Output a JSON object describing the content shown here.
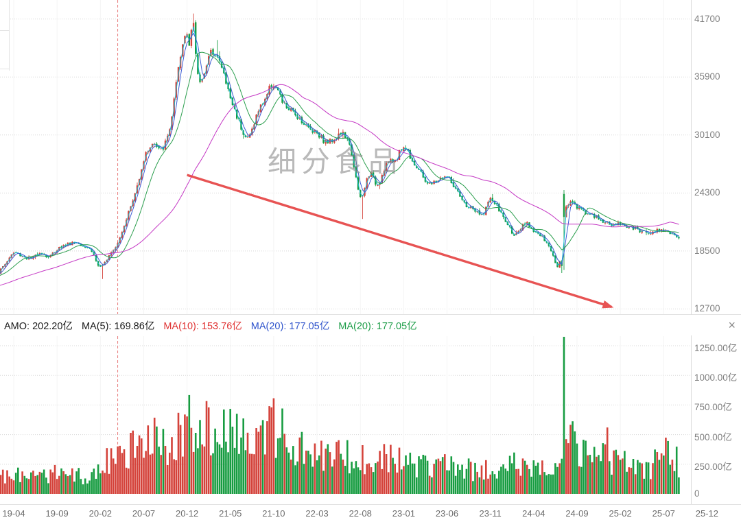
{
  "watermark": {
    "text": "细分食品"
  },
  "icons": {
    "close": "×"
  },
  "indicator_row": {
    "amo_label": "AMO: 202.20亿",
    "ma5_label": "MA(5): 169.86亿",
    "ma10_label": "MA(10): 153.76亿",
    "ma20_label": "MA(20): 177.05亿",
    "ma20b_label": "MA(20): 177.05亿",
    "colors": {
      "amo": "#1a1a1a",
      "ma5": "#1a1a1a",
      "ma10": "#e03434",
      "ma20": "#2f54cc",
      "ma20b": "#1f9e4a"
    }
  },
  "axes": {
    "price_ticks": [
      "41700",
      "35900",
      "30100",
      "24300",
      "18500",
      "12700"
    ],
    "price_tick_values": [
      41700,
      35900,
      30100,
      24300,
      18500,
      12700
    ],
    "volume_ticks": [
      "1250.00亿",
      "1000.00亿",
      "750.00亿",
      "500.00亿",
      "250.00亿",
      "0"
    ],
    "volume_tick_values": [
      1250,
      1000,
      750,
      500,
      250,
      0
    ],
    "x_labels": [
      "19-04",
      "19-09",
      "20-02",
      "20-07",
      "20-12",
      "21-05",
      "21-10",
      "22-03",
      "22-08",
      "23-01",
      "23-06",
      "23-11",
      "24-04",
      "24-09",
      "25-02",
      "25-07",
      "25-12"
    ]
  },
  "chart_data": {
    "type": "candlestick_with_volume",
    "price_axis_range": [
      12700,
      41700
    ],
    "volume_axis_range_yi": [
      0,
      1250
    ],
    "candle_colors": {
      "up": "#d4423a",
      "down": "#179c41"
    },
    "ma_lines": [
      {
        "name": "MA10",
        "period_days": 10,
        "color": "#17b6cf"
      },
      {
        "name": "MA20",
        "period_days": 20,
        "color": "#3b5bd4"
      },
      {
        "name": "MA60",
        "period_days": 60,
        "color": "#2a9e4d"
      },
      {
        "name": "MA250",
        "period_days": 250,
        "color": "#c437c4"
      }
    ],
    "monthly_series": [
      {
        "month": "19-02",
        "close": 16200,
        "amo_yi": 120
      },
      {
        "month": "19-03",
        "close": 17200,
        "amo_yi": 150
      },
      {
        "month": "19-04",
        "close": 18300,
        "amo_yi": 210
      },
      {
        "month": "19-05",
        "close": 18000,
        "amo_yi": 170
      },
      {
        "month": "19-06",
        "close": 17700,
        "amo_yi": 140
      },
      {
        "month": "19-07",
        "close": 18400,
        "amo_yi": 170
      },
      {
        "month": "19-08",
        "close": 17900,
        "amo_yi": 150
      },
      {
        "month": "19-09",
        "close": 18700,
        "amo_yi": 180
      },
      {
        "month": "19-10",
        "close": 19100,
        "amo_yi": 170
      },
      {
        "month": "19-11",
        "close": 19400,
        "amo_yi": 160
      },
      {
        "month": "19-12",
        "close": 19100,
        "amo_yi": 150
      },
      {
        "month": "20-01",
        "close": 18500,
        "amo_yi": 170
      },
      {
        "month": "20-02",
        "close": 16800,
        "amo_yi": 260
      },
      {
        "month": "20-03",
        "close": 18200,
        "amo_yi": 280
      },
      {
        "month": "20-04",
        "close": 19400,
        "amo_yi": 300
      },
      {
        "month": "20-05",
        "close": 21800,
        "amo_yi": 360
      },
      {
        "month": "20-06",
        "close": 24200,
        "amo_yi": 430
      },
      {
        "month": "20-07",
        "close": 27600,
        "amo_yi": 520
      },
      {
        "month": "20-08",
        "close": 29200,
        "amo_yi": 490
      },
      {
        "month": "20-09",
        "close": 28600,
        "amo_yi": 430
      },
      {
        "month": "20-10",
        "close": 30800,
        "amo_yi": 460
      },
      {
        "month": "20-11",
        "close": 36500,
        "amo_yi": 560
      },
      {
        "month": "20-12",
        "close": 40300,
        "amo_yi": 650
      },
      {
        "month": "21-01",
        "close": 35000,
        "amo_yi": 700
      },
      {
        "month": "21-02",
        "close": 36500,
        "amo_yi": 620
      },
      {
        "month": "21-03",
        "close": 38500,
        "amo_yi": 560
      },
      {
        "month": "21-04",
        "close": 36800,
        "amo_yi": 500
      },
      {
        "month": "21-05",
        "close": 33800,
        "amo_yi": 520
      },
      {
        "month": "21-06",
        "close": 31500,
        "amo_yi": 480
      },
      {
        "month": "21-07",
        "close": 29800,
        "amo_yi": 450
      },
      {
        "month": "21-08",
        "close": 32000,
        "amo_yi": 440
      },
      {
        "month": "21-09",
        "close": 33800,
        "amo_yi": 470
      },
      {
        "month": "21-10",
        "close": 35200,
        "amo_yi": 620
      },
      {
        "month": "21-11",
        "close": 33400,
        "amo_yi": 500
      },
      {
        "month": "21-12",
        "close": 32500,
        "amo_yi": 430
      },
      {
        "month": "22-01",
        "close": 31800,
        "amo_yi": 390
      },
      {
        "month": "22-02",
        "close": 30800,
        "amo_yi": 360
      },
      {
        "month": "22-03",
        "close": 30400,
        "amo_yi": 340
      },
      {
        "month": "22-04",
        "close": 29400,
        "amo_yi": 310
      },
      {
        "month": "22-05",
        "close": 29800,
        "amo_yi": 330
      },
      {
        "month": "22-06",
        "close": 30200,
        "amo_yi": 350
      },
      {
        "month": "22-07",
        "close": 28200,
        "amo_yi": 300
      },
      {
        "month": "22-08",
        "close": 23800,
        "amo_yi": 330
      },
      {
        "month": "22-09",
        "close": 26200,
        "amo_yi": 310
      },
      {
        "month": "22-10",
        "close": 25200,
        "amo_yi": 280
      },
      {
        "month": "22-11",
        "close": 27200,
        "amo_yi": 300
      },
      {
        "month": "22-12",
        "close": 27600,
        "amo_yi": 280
      },
      {
        "month": "23-01",
        "close": 28900,
        "amo_yi": 310
      },
      {
        "month": "23-02",
        "close": 27600,
        "amo_yi": 270
      },
      {
        "month": "23-03",
        "close": 26200,
        "amo_yi": 250
      },
      {
        "month": "23-04",
        "close": 25200,
        "amo_yi": 240
      },
      {
        "month": "23-05",
        "close": 25600,
        "amo_yi": 230
      },
      {
        "month": "23-06",
        "close": 25900,
        "amo_yi": 250
      },
      {
        "month": "23-07",
        "close": 24600,
        "amo_yi": 230
      },
      {
        "month": "23-08",
        "close": 23200,
        "amo_yi": 220
      },
      {
        "month": "23-09",
        "close": 22700,
        "amo_yi": 210
      },
      {
        "month": "23-10",
        "close": 22100,
        "amo_yi": 200
      },
      {
        "month": "23-11",
        "close": 23600,
        "amo_yi": 230
      },
      {
        "month": "23-12",
        "close": 22600,
        "amo_yi": 200
      },
      {
        "month": "24-01",
        "close": 21100,
        "amo_yi": 230
      },
      {
        "month": "24-02",
        "close": 20100,
        "amo_yi": 260
      },
      {
        "month": "24-03",
        "close": 21200,
        "amo_yi": 230
      },
      {
        "month": "24-04",
        "close": 20600,
        "amo_yi": 210
      },
      {
        "month": "24-05",
        "close": 19800,
        "amo_yi": 200
      },
      {
        "month": "24-06",
        "close": 18600,
        "amo_yi": 190
      },
      {
        "month": "24-07",
        "close": 17200,
        "amo_yi": 260
      },
      {
        "month": "24-08",
        "close": 23200,
        "amo_yi": 520
      },
      {
        "month": "24-09",
        "close": 22900,
        "amo_yi": 420
      },
      {
        "month": "24-10",
        "close": 22400,
        "amo_yi": 350
      },
      {
        "month": "24-11",
        "close": 21900,
        "amo_yi": 300
      },
      {
        "month": "24-12",
        "close": 21500,
        "amo_yi": 300
      },
      {
        "month": "25-01",
        "close": 21100,
        "amo_yi": 280
      },
      {
        "month": "25-02",
        "close": 21200,
        "amo_yi": 260
      },
      {
        "month": "25-03",
        "close": 20900,
        "amo_yi": 250
      },
      {
        "month": "25-04",
        "close": 20600,
        "amo_yi": 240
      },
      {
        "month": "25-05",
        "close": 20400,
        "amo_yi": 230
      },
      {
        "month": "25-06",
        "close": 20500,
        "amo_yi": 260
      },
      {
        "month": "25-07",
        "close": 20700,
        "amo_yi": 380
      },
      {
        "month": "25-08",
        "close": 20100,
        "amo_yi": 300
      },
      {
        "month": "25-09",
        "close": 19500,
        "amo_yi": 260
      }
    ],
    "events": {
      "candle_overrides": [
        {
          "month": "20-02",
          "week": 1,
          "low": 15700
        },
        {
          "month": "20-12",
          "week": 2,
          "close": 40600
        },
        {
          "month": "20-12",
          "week": 3,
          "close": 41300,
          "high": 42250
        },
        {
          "month": "21-01",
          "week": 0,
          "close": 38200
        },
        {
          "month": "21-01",
          "week": 1,
          "close": 36200
        },
        {
          "month": "21-03",
          "week": 2,
          "high": 39600
        },
        {
          "month": "21-09",
          "week": 3,
          "amo": 730,
          "amo_dir": "up"
        },
        {
          "month": "22-08",
          "week": 1,
          "low": 21700
        },
        {
          "month": "24-07",
          "week": 0,
          "close": 17500
        },
        {
          "month": "24-07",
          "week": 1,
          "close": 17000,
          "low": 16300
        },
        {
          "month": "24-07",
          "week": 2,
          "open": 24200,
          "close": 21900,
          "high": 24600,
          "low": 16600,
          "amo": 1335,
          "amo_dir": "down"
        },
        {
          "month": "24-07",
          "week": 3,
          "close": 22950
        },
        {
          "month": "24-12",
          "week": 2,
          "amo": 560,
          "amo_dir": "up"
        }
      ]
    },
    "annotations": {
      "trend_arrow": {
        "color": "#e64545",
        "from": {
          "month": "20-12",
          "price": 26100
        },
        "to": {
          "month": "25-01",
          "price": 12900
        }
      },
      "dashed_vline": {
        "month": "20-04",
        "color": "#e87c7c"
      }
    }
  }
}
